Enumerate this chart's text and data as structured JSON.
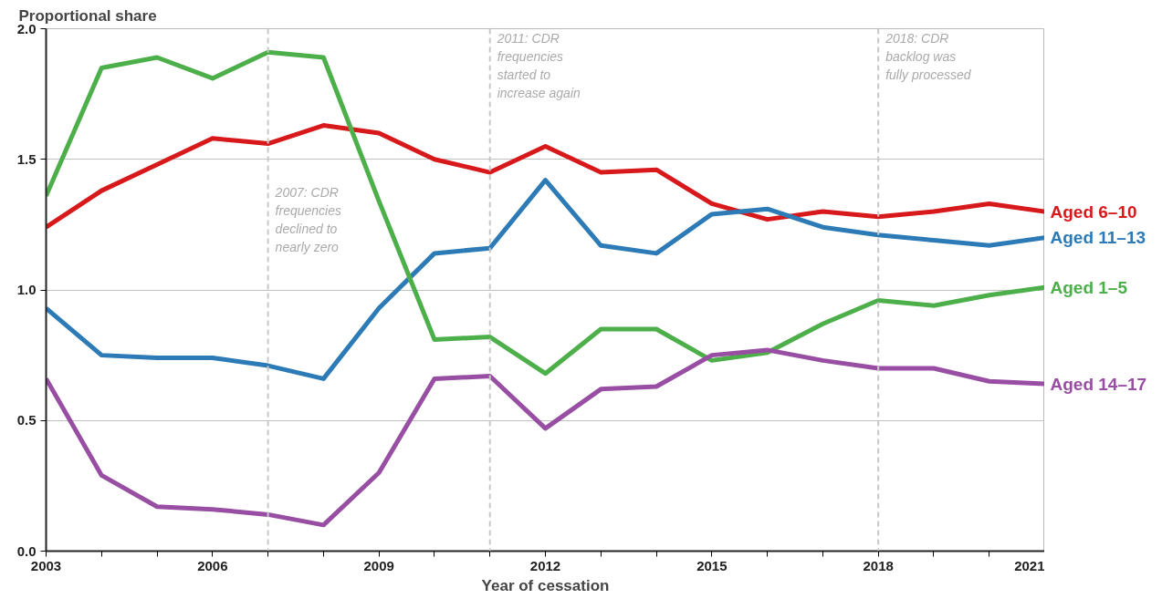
{
  "chart_data": {
    "type": "line",
    "ylabel": "Proportional share",
    "xlabel": "Year of cessation",
    "x": [
      2003,
      2004,
      2005,
      2006,
      2007,
      2008,
      2009,
      2010,
      2011,
      2012,
      2013,
      2014,
      2015,
      2016,
      2017,
      2018,
      2019,
      2020,
      2021
    ],
    "series": [
      {
        "name": "Aged 6–10",
        "color": "#d7191c",
        "values": [
          1.24,
          1.38,
          1.48,
          1.58,
          1.56,
          1.63,
          1.6,
          1.5,
          1.45,
          1.55,
          1.45,
          1.46,
          1.33,
          1.27,
          1.3,
          1.28,
          1.3,
          1.33,
          1.3
        ]
      },
      {
        "name": "Aged 11–13",
        "color": "#2c7bb6",
        "values": [
          0.93,
          0.75,
          0.74,
          0.74,
          0.71,
          0.66,
          0.93,
          1.14,
          1.16,
          1.42,
          1.17,
          1.14,
          1.29,
          1.31,
          1.24,
          1.21,
          1.19,
          1.17,
          1.2
        ]
      },
      {
        "name": "Aged 1–5",
        "color": "#4daf4a",
        "values": [
          1.36,
          1.85,
          1.89,
          1.81,
          1.91,
          1.89,
          1.34,
          0.81,
          0.82,
          0.68,
          0.85,
          0.85,
          0.73,
          0.76,
          0.87,
          0.96,
          0.94,
          0.98,
          1.01
        ]
      },
      {
        "name": "Aged 14–17",
        "color": "#984ea3",
        "values": [
          0.66,
          0.29,
          0.17,
          0.16,
          0.14,
          0.1,
          0.3,
          0.66,
          0.67,
          0.47,
          0.62,
          0.63,
          0.75,
          0.77,
          0.73,
          0.7,
          0.7,
          0.65,
          0.64
        ]
      }
    ],
    "xlim": [
      2003,
      2021
    ],
    "ylim": [
      0,
      2
    ],
    "xticks": [
      2003,
      {
        "value": 2004,
        "label": null
      },
      {
        "value": 2005,
        "label": null
      },
      2006,
      {
        "value": 2007,
        "label": null
      },
      {
        "value": 2008,
        "label": null
      },
      2009,
      {
        "value": 2010,
        "label": null
      },
      {
        "value": 2011,
        "label": null
      },
      2012,
      {
        "value": 2013,
        "label": null
      },
      {
        "value": 2014,
        "label": null
      },
      2015,
      {
        "value": 2016,
        "label": null
      },
      {
        "value": 2017,
        "label": null
      },
      2018,
      {
        "value": 2019,
        "label": null
      },
      {
        "value": 2020,
        "label": null
      },
      2021
    ],
    "yticks": [
      {
        "value": 0,
        "label": "0.0"
      },
      {
        "value": 0.5,
        "label": "0.5"
      },
      {
        "value": 1,
        "label": "1.0"
      },
      {
        "value": 1.5,
        "label": "1.5"
      },
      {
        "value": 2,
        "label": "2.0"
      }
    ],
    "grid": "y",
    "legend": false,
    "marker": "none",
    "line_style": "solid",
    "ref_lines": [
      {
        "axis": "x",
        "value": 2007,
        "color": "#c8c8c8",
        "line_style": "dashed"
      },
      {
        "axis": "x",
        "value": 2011,
        "color": "#c8c8c8",
        "line_style": "dashed"
      },
      {
        "axis": "x",
        "value": 2018,
        "color": "#c8c8c8",
        "line_style": "dashed"
      }
    ],
    "annotations": [
      {
        "text": "2007: CDR\nfrequencies\ndeclined to\nnearly zero",
        "x": 2007,
        "y": 1.4
      },
      {
        "text": "2011: CDR\nfrequencies\nstarted to\nincrease again",
        "x": 2011,
        "y": 1.99
      },
      {
        "text": "2018: CDR\nbacklog was\nfully processed",
        "x": 2018,
        "y": 1.99
      }
    ]
  }
}
